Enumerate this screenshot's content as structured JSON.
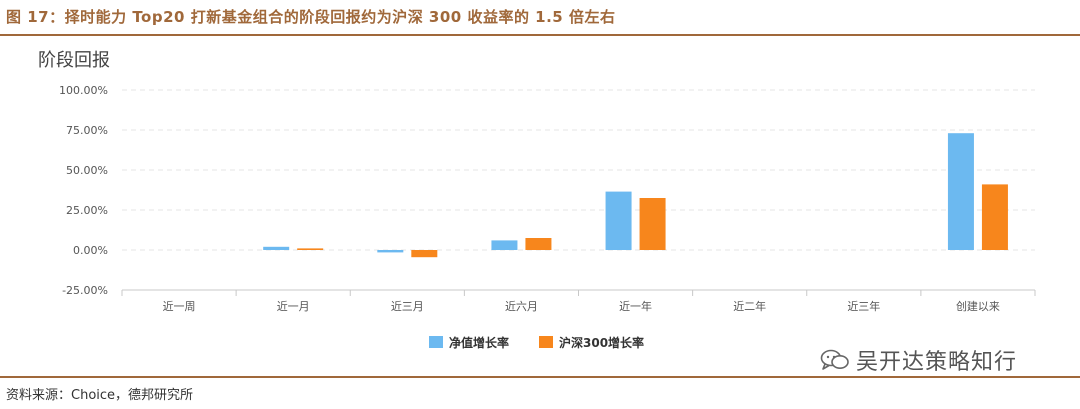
{
  "figure": {
    "caption": "图 17：择时能力 Top20 打新基金组合的阶段回报约为沪深 300 收益率的 1.5 倍左右",
    "source": "资料来源：Choice，德邦研究所",
    "watermark": "吴开达策略知行",
    "watermark_icon": "wechat-icon"
  },
  "colors": {
    "accent": "#a0683a",
    "series1": "#6cb9f0",
    "series2": "#f7861c",
    "grid": "#e4e4e4"
  },
  "chart_data": {
    "type": "bar",
    "ylabel": "阶段回报",
    "categories": [
      "近一周",
      "近一月",
      "近三月",
      "近六月",
      "近一年",
      "近二年",
      "近三年",
      "创建以来"
    ],
    "series": [
      {
        "name": "净值增长率",
        "values": [
          0,
          2.0,
          -1.5,
          6.0,
          36.5,
          0,
          0,
          73.0
        ]
      },
      {
        "name": "沪深300增长率",
        "values": [
          0,
          1.0,
          -4.5,
          7.5,
          32.5,
          0,
          0,
          41.0
        ]
      }
    ],
    "ylim": [
      -25,
      100
    ],
    "yticks": [
      100,
      75,
      50,
      25,
      0,
      -25
    ],
    "ytick_labels": [
      "100.00%",
      "75.00%",
      "50.00%",
      "25.00%",
      "0.00%",
      "-25.00%"
    ],
    "grid": true,
    "legend": "bottom-center"
  }
}
